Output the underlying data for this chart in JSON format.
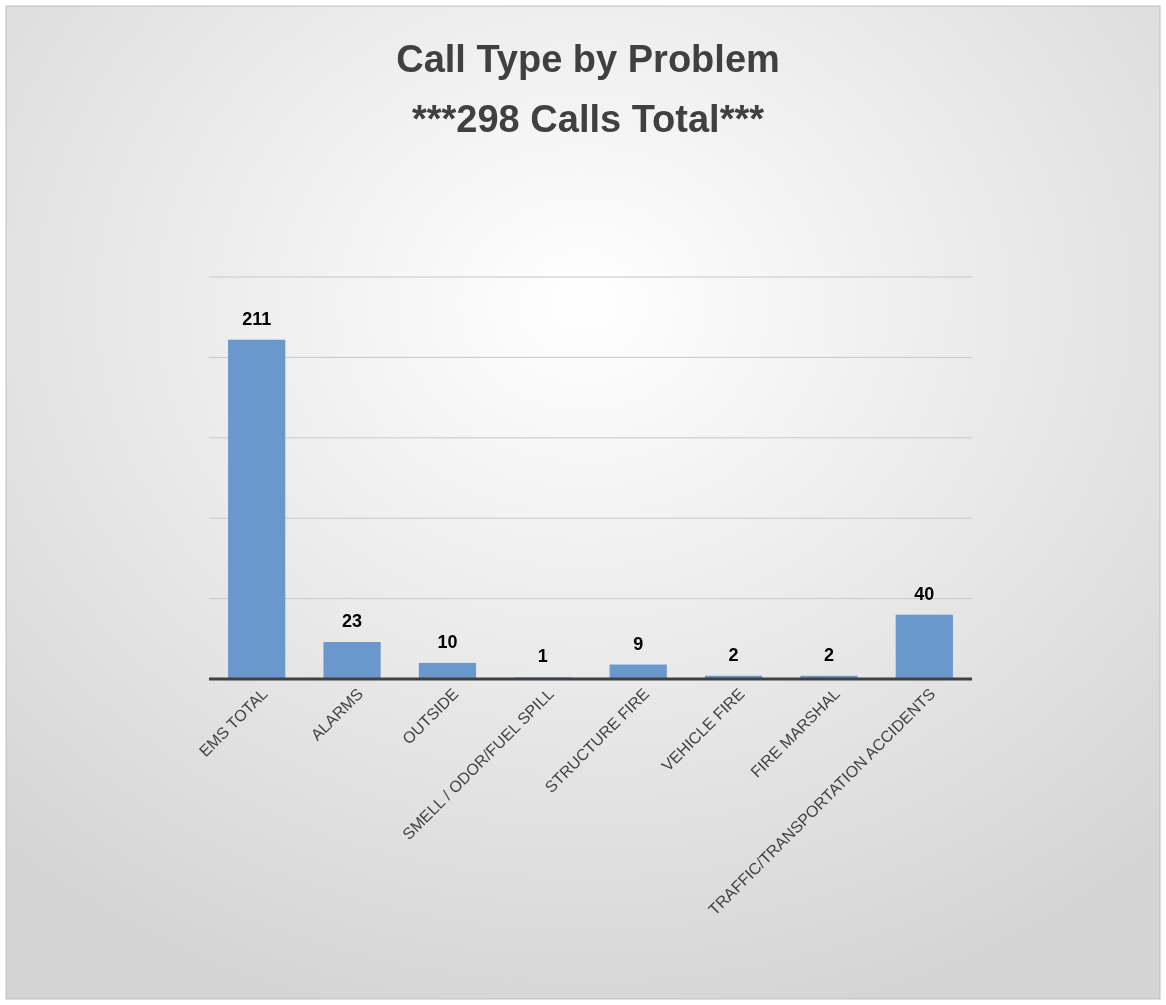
{
  "chart_data": {
    "type": "bar",
    "title": "Call Type by Problem\n***298 Calls Total***",
    "categories": [
      "EMS TOTAL",
      "ALARMS",
      "OUTSIDE",
      "SMELL / ODOR/FUEL SPILL",
      "STRUCTURE FIRE",
      "VEHICLE FIRE",
      "FIRE MARSHAL",
      "TRAFFIC/TRANSPORTATION ACCIDENTS"
    ],
    "values": [
      211,
      23,
      10,
      1,
      9,
      2,
      2,
      40
    ],
    "color": "#6a97cc",
    "ylim": [
      0,
      250
    ],
    "yticks": [
      {
        "value": 0,
        "label": null
      },
      {
        "value": 50,
        "label": null
      },
      {
        "value": 100,
        "label": null
      },
      {
        "value": 150,
        "label": null
      },
      {
        "value": 200,
        "label": null
      },
      {
        "value": 250,
        "label": null
      }
    ],
    "grid": "y",
    "tick_labels": "x",
    "data_labels": true
  }
}
